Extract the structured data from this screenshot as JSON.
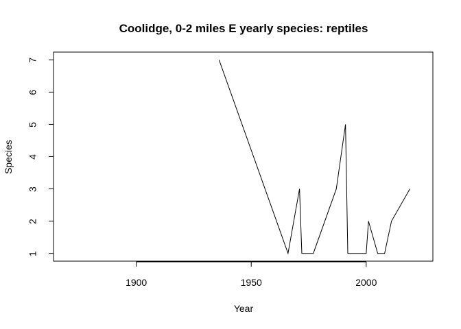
{
  "chart_data": {
    "type": "line",
    "title": "Coolidge, 0-2 miles E yearly species: reptiles",
    "xlabel": "Year",
    "ylabel": "Species",
    "xlim": [
      1864,
      2029
    ],
    "ylim": [
      0.76,
      7.24
    ],
    "xticks": [
      1900,
      1950,
      2000
    ],
    "yticks": [
      1,
      2,
      3,
      4,
      5,
      6,
      7
    ],
    "grid": false,
    "series": [
      {
        "x": [
          1936,
          1966,
          1971,
          1972,
          1977,
          1987,
          1991,
          1992,
          2000,
          2001,
          2005,
          2008,
          2011,
          2019
        ],
        "y": [
          7,
          1,
          3,
          1,
          1,
          3,
          5,
          1,
          1,
          2,
          1,
          1,
          2,
          3
        ]
      }
    ]
  }
}
